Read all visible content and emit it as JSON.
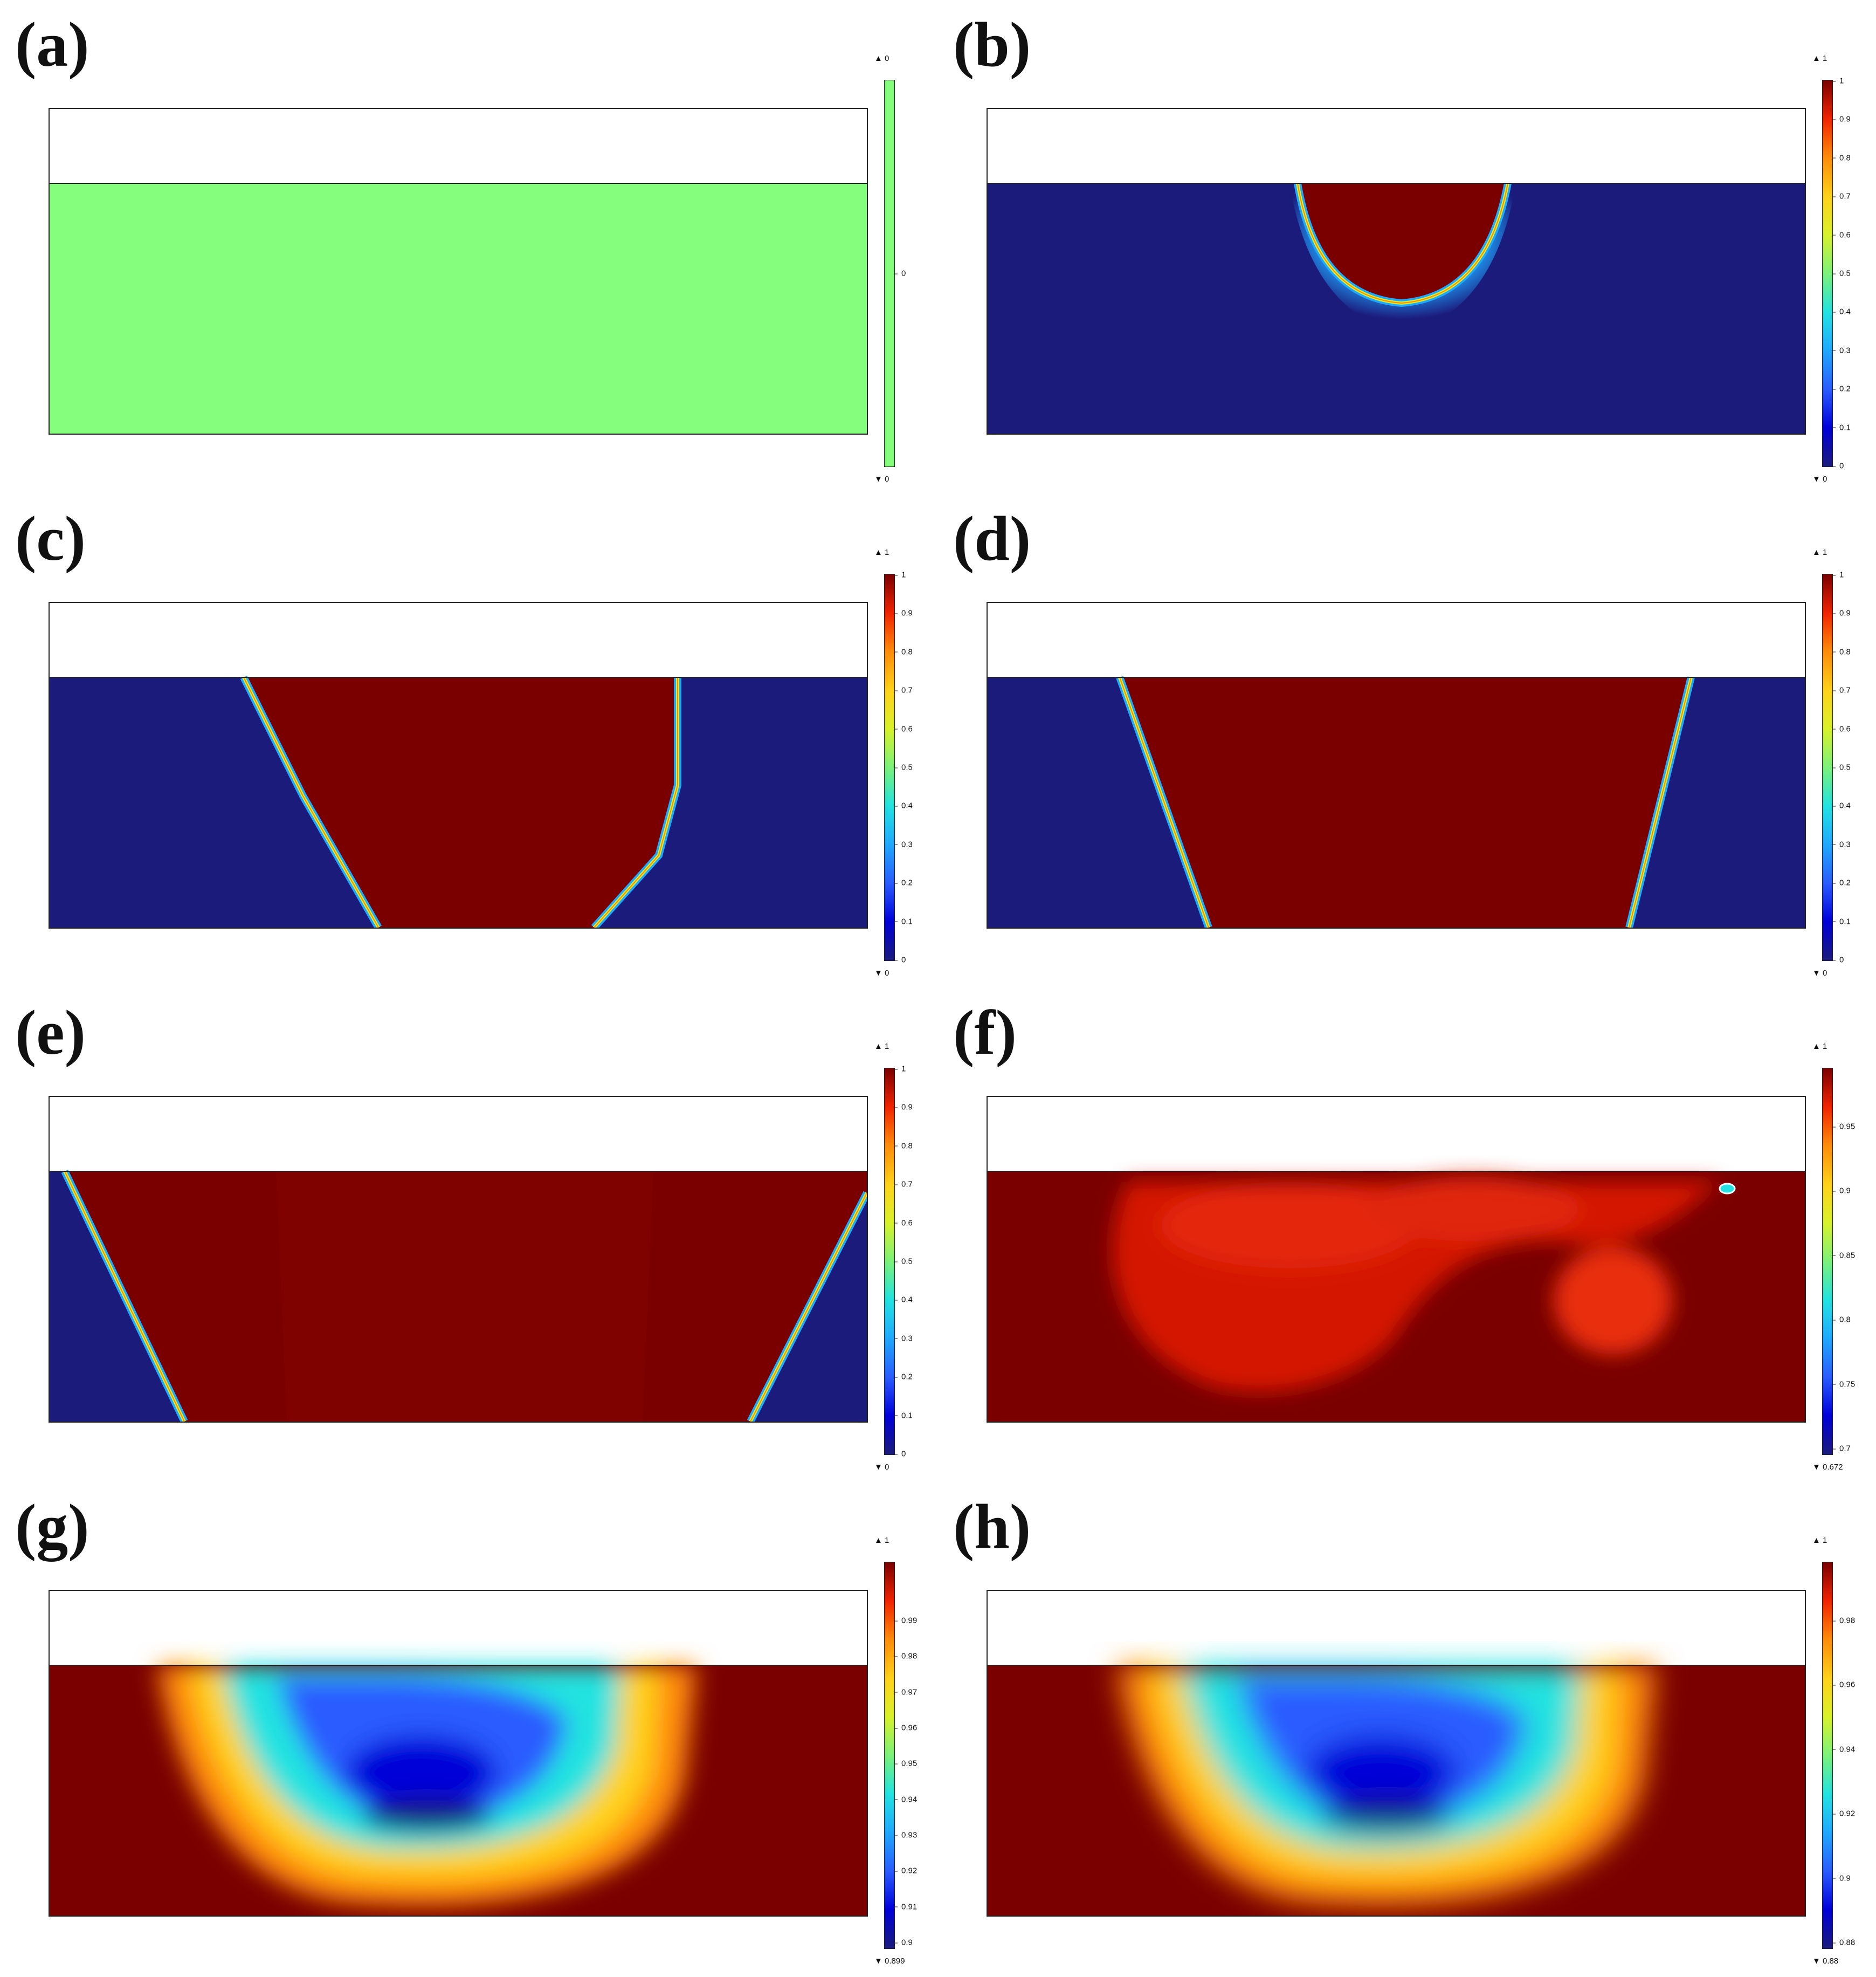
{
  "colors": {
    "jet": [
      "#1b1b7c",
      "#0000d8",
      "#2a5cff",
      "#1fa8ff",
      "#22e3e0",
      "#7cf27a",
      "#d8f22a",
      "#ffd21a",
      "#ff8c0a",
      "#f02400",
      "#7a0000"
    ],
    "green": "#85fd7d",
    "deep_blue": "#1b1b7c",
    "dark_red": "#7a0000"
  },
  "panels": [
    {
      "label": "(a)",
      "max": "▲ 0",
      "min": "▼ 0",
      "ticks": [
        "0"
      ],
      "field": "uniform"
    },
    {
      "label": "(b)",
      "max": "▲ 1",
      "min": "▼ 0",
      "ticks": [
        "1",
        "0.9",
        "0.8",
        "0.7",
        "0.6",
        "0.5",
        "0.4",
        "0.3",
        "0.2",
        "0.1",
        "0"
      ],
      "field": "drop"
    },
    {
      "label": "(c)",
      "max": "▲ 1",
      "min": "▼ 0",
      "ticks": [
        "1",
        "0.9",
        "0.8",
        "0.7",
        "0.6",
        "0.5",
        "0.4",
        "0.3",
        "0.2",
        "0.1",
        "0"
      ],
      "field": "wedge1"
    },
    {
      "label": "(d)",
      "max": "▲ 1",
      "min": "▼ 0",
      "ticks": [
        "1",
        "0.9",
        "0.8",
        "0.7",
        "0.6",
        "0.5",
        "0.4",
        "0.3",
        "0.2",
        "0.1",
        "0"
      ],
      "field": "wedge2"
    },
    {
      "label": "(e)",
      "max": "▲ 1",
      "min": "▼ 0",
      "ticks": [
        "1",
        "0.9",
        "0.8",
        "0.7",
        "0.6",
        "0.5",
        "0.4",
        "0.3",
        "0.2",
        "0.1",
        "0"
      ],
      "field": "wedge3"
    },
    {
      "label": "(f)",
      "max": "▲ 1",
      "min": "▼ 0.672",
      "ticks": [
        "0.95",
        "0.9",
        "0.85",
        "0.8",
        "0.75",
        "0.7"
      ],
      "field": "swirl-red"
    },
    {
      "label": "(g)",
      "max": "▲ 1",
      "min": "▼ 0.899",
      "ticks": [
        "0.99",
        "0.98",
        "0.97",
        "0.96",
        "0.95",
        "0.94",
        "0.93",
        "0.92",
        "0.91",
        "0.9"
      ],
      "field": "swirl1"
    },
    {
      "label": "(h)",
      "max": "▲ 1",
      "min": "▼ 0.88",
      "ticks": [
        "0.98",
        "0.96",
        "0.94",
        "0.92",
        "0.9",
        "0.88"
      ],
      "field": "swirl2"
    }
  ]
}
